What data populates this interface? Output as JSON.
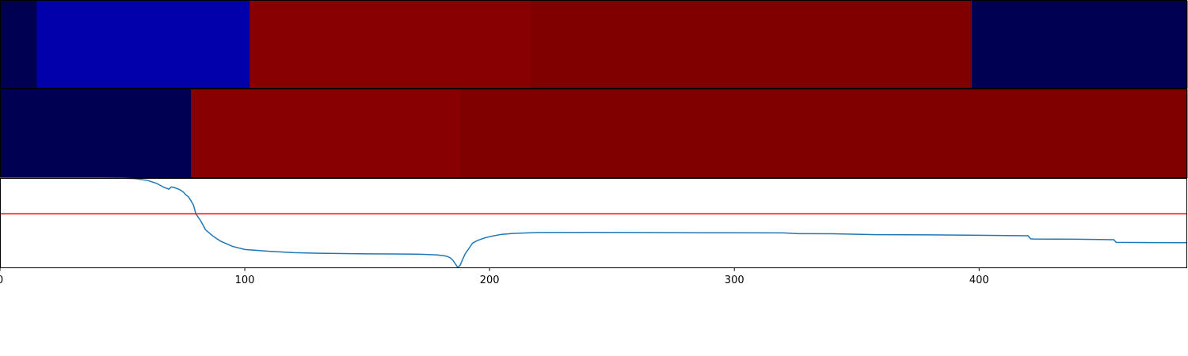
{
  "chart_data": [
    {
      "type": "heatmap",
      "panel": "top-strip",
      "xlim": [
        0,
        485
      ],
      "segments": [
        {
          "start": 0,
          "end": 15,
          "color": "#000050"
        },
        {
          "start": 15,
          "end": 102,
          "color": "#0000aa"
        },
        {
          "start": 102,
          "end": 217,
          "color": "#880000"
        },
        {
          "start": 217,
          "end": 397,
          "color": "#800000"
        },
        {
          "start": 397,
          "end": 485,
          "color": "#000050"
        }
      ]
    },
    {
      "type": "heatmap",
      "panel": "middle-strip",
      "xlim": [
        0,
        485
      ],
      "segments": [
        {
          "start": 0,
          "end": 78,
          "color": "#000050"
        },
        {
          "start": 78,
          "end": 188,
          "color": "#880000"
        },
        {
          "start": 188,
          "end": 485,
          "color": "#800000"
        }
      ]
    },
    {
      "type": "line",
      "panel": "bottom-plot",
      "xlim": [
        0,
        485
      ],
      "ylim": [
        0,
        1
      ],
      "x_ticks": [
        0,
        100,
        200,
        300,
        400
      ],
      "grid": false,
      "series": [
        {
          "color": "#1f77b4",
          "x": [
            0,
            40,
            50,
            55,
            60,
            64,
            67,
            69,
            70,
            71,
            72,
            73,
            74,
            75,
            76,
            77,
            78,
            79,
            80,
            82,
            84,
            87,
            90,
            95,
            100,
            110,
            120,
            130,
            140,
            150,
            160,
            165,
            170,
            173,
            176,
            178,
            179,
            180,
            181,
            182,
            183,
            184,
            185,
            186,
            187,
            188,
            189,
            190,
            191,
            192,
            193,
            195,
            198,
            201,
            205,
            210,
            220,
            240,
            260,
            280,
            300,
            320,
            326,
            340,
            358,
            380,
            400,
            420,
            421,
            422,
            440,
            455,
            456,
            470,
            485
          ],
          "y": [
            1.0,
            1.0,
            0.998,
            0.993,
            0.975,
            0.94,
            0.895,
            0.875,
            0.9,
            0.895,
            0.885,
            0.875,
            0.86,
            0.84,
            0.81,
            0.79,
            0.745,
            0.7,
            0.6,
            0.52,
            0.42,
            0.35,
            0.295,
            0.235,
            0.2,
            0.18,
            0.165,
            0.158,
            0.155,
            0.152,
            0.15,
            0.149,
            0.148,
            0.146,
            0.143,
            0.14,
            0.138,
            0.135,
            0.132,
            0.127,
            0.12,
            0.105,
            0.08,
            0.04,
            0.0,
            0.025,
            0.09,
            0.15,
            0.19,
            0.23,
            0.27,
            0.3,
            0.33,
            0.35,
            0.37,
            0.38,
            0.39,
            0.392,
            0.39,
            0.388,
            0.387,
            0.386,
            0.377,
            0.376,
            0.366,
            0.364,
            0.36,
            0.354,
            0.32,
            0.318,
            0.315,
            0.31,
            0.28,
            0.278,
            0.276
          ]
        },
        {
          "color": "#ff0000",
          "x": [
            0,
            485
          ],
          "y": [
            0.6,
            0.6
          ]
        }
      ]
    }
  ]
}
